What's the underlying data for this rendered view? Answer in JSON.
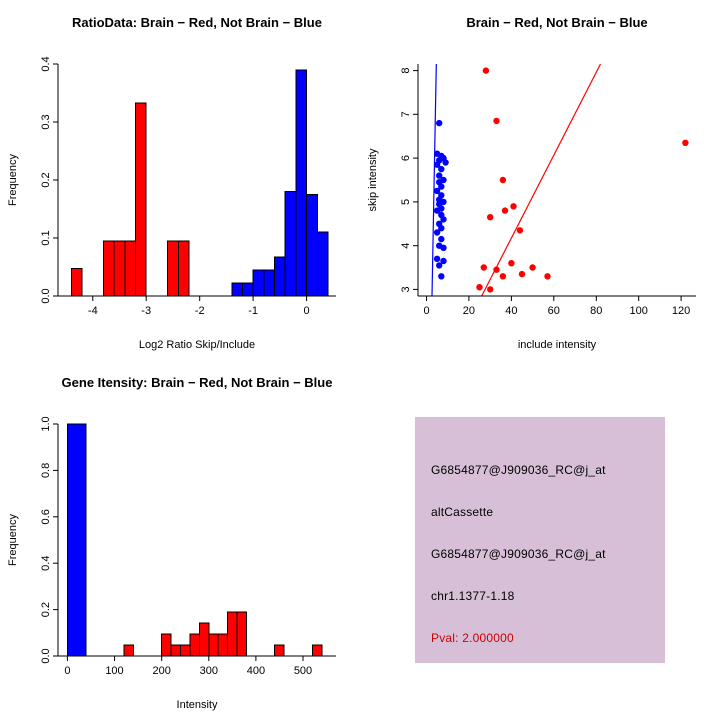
{
  "figure": {
    "background": "#FFFFFF",
    "accent_red": "#FF0000",
    "accent_blue": "#0000FF"
  },
  "info_box": {
    "background": "#D8BFD8",
    "lines": [
      {
        "text": "G6854877@J909036_RC@j_at",
        "color": "#000000"
      },
      {
        "text": "altCassette",
        "color": "#000000"
      },
      {
        "text": "G6854877@J909036_RC@j_at",
        "color": "#000000"
      },
      {
        "text": "chr1.1377-1.18",
        "color": "#000000"
      },
      {
        "text": "Pval: 2.000000",
        "color": "#CC0000"
      }
    ]
  },
  "chart_data": [
    {
      "type": "bar",
      "title": "RatioData: Brain − Red, Not Brain − Blue",
      "xlabel": "Log2 Ratio Skip/Include",
      "ylabel": "Frequency",
      "xlim": [
        -4.65,
        0.55
      ],
      "ylim": [
        0,
        0.4
      ],
      "xticks": [
        -4,
        -3,
        -2,
        -1,
        0
      ],
      "xtick_labels": [
        "-4",
        "-3",
        "-2",
        "-1",
        "0"
      ],
      "yticks": [
        0,
        0.1,
        0.2,
        0.3,
        0.4
      ],
      "ytick_labels": [
        "0.0",
        "0.1",
        "0.2",
        "0.3",
        "0.4"
      ],
      "grid": false,
      "legend": "none",
      "bars": [
        {
          "x0": -4.4,
          "w": 0.2,
          "h": 0.047,
          "color": "#FF0000"
        },
        {
          "x0": -3.8,
          "w": 0.2,
          "h": 0.095,
          "color": "#FF0000"
        },
        {
          "x0": -3.6,
          "w": 0.2,
          "h": 0.095,
          "color": "#FF0000"
        },
        {
          "x0": -3.4,
          "w": 0.2,
          "h": 0.095,
          "color": "#FF0000"
        },
        {
          "x0": -3.2,
          "w": 0.2,
          "h": 0.333,
          "color": "#FF0000"
        },
        {
          "x0": -2.6,
          "w": 0.2,
          "h": 0.095,
          "color": "#FF0000"
        },
        {
          "x0": -2.4,
          "w": 0.2,
          "h": 0.095,
          "color": "#FF0000"
        },
        {
          "x0": -1.4,
          "w": 0.2,
          "h": 0.022,
          "color": "#0000FF"
        },
        {
          "x0": -1.2,
          "w": 0.2,
          "h": 0.022,
          "color": "#0000FF"
        },
        {
          "x0": -1.0,
          "w": 0.2,
          "h": 0.045,
          "color": "#0000FF"
        },
        {
          "x0": -0.8,
          "w": 0.2,
          "h": 0.045,
          "color": "#0000FF"
        },
        {
          "x0": -0.6,
          "w": 0.2,
          "h": 0.067,
          "color": "#0000FF"
        },
        {
          "x0": -0.4,
          "w": 0.2,
          "h": 0.18,
          "color": "#0000FF"
        },
        {
          "x0": -0.2,
          "w": 0.2,
          "h": 0.39,
          "color": "#0000FF"
        },
        {
          "x0": 0.0,
          "w": 0.2,
          "h": 0.175,
          "color": "#0000FF"
        },
        {
          "x0": 0.2,
          "w": 0.2,
          "h": 0.11,
          "color": "#0000FF"
        }
      ]
    },
    {
      "type": "scatter",
      "title": "Brain − Red, Not Brain − Blue",
      "xlabel": "include intensity",
      "ylabel": "skip intensity",
      "xlim": [
        -4,
        127
      ],
      "ylim": [
        2.85,
        8.15
      ],
      "xticks": [
        0,
        20,
        40,
        60,
        80,
        100,
        120
      ],
      "xtick_labels": [
        "0",
        "20",
        "40",
        "60",
        "80",
        "100",
        "120"
      ],
      "yticks": [
        3,
        4,
        5,
        6,
        7,
        8
      ],
      "ytick_labels": [
        "3",
        "4",
        "5",
        "6",
        "7",
        "8"
      ],
      "grid": false,
      "legend": "none",
      "series": [
        {
          "name": "Not Brain",
          "color": "#0000FF",
          "points": [
            [
              6,
              6.8
            ],
            [
              5,
              6.1
            ],
            [
              7,
              6.05
            ],
            [
              8,
              6.0
            ],
            [
              6,
              5.95
            ],
            [
              9,
              5.9
            ],
            [
              5,
              5.85
            ],
            [
              7,
              5.75
            ],
            [
              6,
              5.6
            ],
            [
              8,
              5.5
            ],
            [
              6,
              5.45
            ],
            [
              7,
              5.35
            ],
            [
              5,
              5.25
            ],
            [
              7,
              5.15
            ],
            [
              6,
              5.05
            ],
            [
              8,
              5.0
            ],
            [
              6,
              4.95
            ],
            [
              7,
              4.85
            ],
            [
              5,
              4.8
            ],
            [
              7,
              4.7
            ],
            [
              8,
              4.6
            ],
            [
              6,
              4.5
            ],
            [
              7,
              4.4
            ],
            [
              5,
              4.3
            ],
            [
              7,
              4.15
            ],
            [
              6,
              4.0
            ],
            [
              8,
              3.95
            ],
            [
              5,
              3.7
            ],
            [
              8,
              3.65
            ],
            [
              6,
              3.55
            ],
            [
              7,
              3.3
            ]
          ]
        },
        {
          "name": "Brain",
          "color": "#FF0000",
          "points": [
            [
              28,
              8.0
            ],
            [
              33,
              6.85
            ],
            [
              122,
              6.35
            ],
            [
              36,
              5.5
            ],
            [
              30,
              4.65
            ],
            [
              37,
              4.8
            ],
            [
              41,
              4.9
            ],
            [
              44,
              4.35
            ],
            [
              27,
              3.5
            ],
            [
              33,
              3.45
            ],
            [
              36,
              3.3
            ],
            [
              40,
              3.6
            ],
            [
              45,
              3.35
            ],
            [
              50,
              3.5
            ],
            [
              57,
              3.3
            ],
            [
              25,
              3.05
            ],
            [
              30,
              3.0
            ]
          ]
        }
      ],
      "lines": [
        {
          "color": "#0000FF",
          "x1": 2.6,
          "y1": 2.85,
          "x2": 4.6,
          "y2": 8.15
        },
        {
          "color": "#FF0000",
          "x1": 26,
          "y1": 2.85,
          "x2": 82,
          "y2": 8.15
        }
      ]
    },
    {
      "type": "bar",
      "title": "Gene Itensity: Brain − Red, Not Brain − Blue",
      "xlabel": "Intensity",
      "ylabel": "Frequency",
      "xlim": [
        -20,
        570
      ],
      "ylim": [
        0,
        1.0
      ],
      "xticks": [
        0,
        100,
        200,
        300,
        400,
        500
      ],
      "xtick_labels": [
        "0",
        "100",
        "200",
        "300",
        "400",
        "500"
      ],
      "yticks": [
        0,
        0.2,
        0.4,
        0.6,
        0.8,
        1.0
      ],
      "ytick_labels": [
        "0.0",
        "0.2",
        "0.4",
        "0.6",
        "0.8",
        "1.0"
      ],
      "grid": false,
      "legend": "none",
      "bars": [
        {
          "x0": 0,
          "w": 40,
          "h": 1.0,
          "color": "#0000FF"
        },
        {
          "x0": 120,
          "w": 20,
          "h": 0.048,
          "color": "#FF0000"
        },
        {
          "x0": 200,
          "w": 20,
          "h": 0.095,
          "color": "#FF0000"
        },
        {
          "x0": 220,
          "w": 20,
          "h": 0.048,
          "color": "#FF0000"
        },
        {
          "x0": 240,
          "w": 20,
          "h": 0.048,
          "color": "#FF0000"
        },
        {
          "x0": 260,
          "w": 20,
          "h": 0.095,
          "color": "#FF0000"
        },
        {
          "x0": 280,
          "w": 20,
          "h": 0.143,
          "color": "#FF0000"
        },
        {
          "x0": 300,
          "w": 20,
          "h": 0.095,
          "color": "#FF0000"
        },
        {
          "x0": 320,
          "w": 20,
          "h": 0.095,
          "color": "#FF0000"
        },
        {
          "x0": 340,
          "w": 20,
          "h": 0.19,
          "color": "#FF0000"
        },
        {
          "x0": 360,
          "w": 20,
          "h": 0.19,
          "color": "#FF0000"
        },
        {
          "x0": 440,
          "w": 20,
          "h": 0.048,
          "color": "#FF0000"
        },
        {
          "x0": 520,
          "w": 20,
          "h": 0.048,
          "color": "#FF0000"
        }
      ]
    }
  ]
}
